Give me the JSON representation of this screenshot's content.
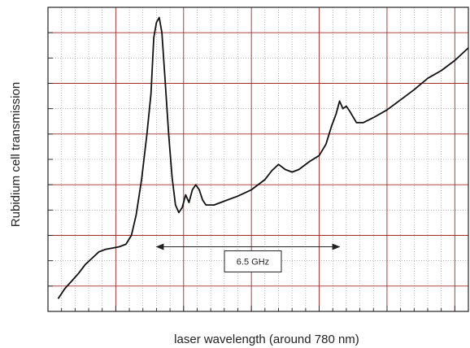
{
  "chart_data": {
    "type": "line",
    "title": "",
    "xlabel": "laser wavelength (around 780 nm)",
    "ylabel": "Rubidium cell transmission",
    "x_tick_labels": false,
    "y_tick_labels": false,
    "grid": true,
    "colors": {
      "line": "#111111",
      "major_grid": "#a52a2a",
      "minor_grid": "#888888",
      "frame": "#222222"
    },
    "annotation": {
      "text": "6.5 GHz",
      "type": "double-arrow",
      "x_from": 16,
      "x_to": 43
    },
    "xlim": [
      0,
      62
    ],
    "ylim": [
      0,
      12
    ],
    "series": [
      {
        "values": [
          [
            1.5,
            0.5
          ],
          [
            2.5,
            0.9
          ],
          [
            3.5,
            1.2
          ],
          [
            4.5,
            1.5
          ],
          [
            5.5,
            1.85
          ],
          [
            6.5,
            2.1
          ],
          [
            7.5,
            2.35
          ],
          [
            8.5,
            2.45
          ],
          [
            9.5,
            2.5
          ],
          [
            10.5,
            2.55
          ],
          [
            11.5,
            2.65
          ],
          [
            12.3,
            3.0
          ],
          [
            13.0,
            3.8
          ],
          [
            13.8,
            5.2
          ],
          [
            14.6,
            7.0
          ],
          [
            15.2,
            8.6
          ],
          [
            15.6,
            10.8
          ],
          [
            16.0,
            11.4
          ],
          [
            16.4,
            11.6
          ],
          [
            16.8,
            11.0
          ],
          [
            17.3,
            9.0
          ],
          [
            17.8,
            7.0
          ],
          [
            18.3,
            5.3
          ],
          [
            18.8,
            4.2
          ],
          [
            19.3,
            3.9
          ],
          [
            19.8,
            4.1
          ],
          [
            20.3,
            4.6
          ],
          [
            20.8,
            4.3
          ],
          [
            21.3,
            4.8
          ],
          [
            21.8,
            5.0
          ],
          [
            22.3,
            4.8
          ],
          [
            22.8,
            4.4
          ],
          [
            23.3,
            4.2
          ],
          [
            24.5,
            4.2
          ],
          [
            26.0,
            4.35
          ],
          [
            28.0,
            4.55
          ],
          [
            30.0,
            4.8
          ],
          [
            32.0,
            5.2
          ],
          [
            33.0,
            5.55
          ],
          [
            34.0,
            5.8
          ],
          [
            35.0,
            5.6
          ],
          [
            36.0,
            5.5
          ],
          [
            37.0,
            5.6
          ],
          [
            38.5,
            5.9
          ],
          [
            40.0,
            6.15
          ],
          [
            41.0,
            6.6
          ],
          [
            41.8,
            7.3
          ],
          [
            42.5,
            7.8
          ],
          [
            43.0,
            8.3
          ],
          [
            43.5,
            8.0
          ],
          [
            44.0,
            8.1
          ],
          [
            44.5,
            7.9
          ],
          [
            45.5,
            7.45
          ],
          [
            46.5,
            7.45
          ],
          [
            48.0,
            7.65
          ],
          [
            50.0,
            7.95
          ],
          [
            52.0,
            8.35
          ],
          [
            54.0,
            8.75
          ],
          [
            56.0,
            9.2
          ],
          [
            58.0,
            9.5
          ],
          [
            60.0,
            9.9
          ],
          [
            62.0,
            10.4
          ]
        ]
      }
    ]
  }
}
